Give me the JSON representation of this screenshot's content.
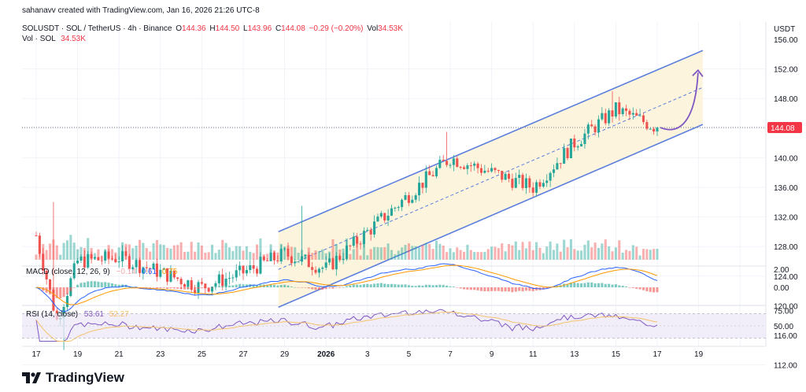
{
  "header": {
    "credit": "sahanavv created with TradingView.com, Jan 16, 2026 21:26 UTC-8",
    "symbol": "SOLUSDT · SOL / TetherUS · 4h · Binance",
    "o_label": "O",
    "o_value": "144.36",
    "h_label": "H",
    "h_value": "144.50",
    "l_label": "L",
    "l_value": "143.96",
    "c_label": "C",
    "c_value": "144.08",
    "change": "−0.29 (−0.20%)",
    "vol_label": "Vol",
    "vol_value": "34.53K",
    "vol_row_label": "Vol · SOL",
    "vol_row_value": "34.53K",
    "currency": "USDT"
  },
  "macd": {
    "label": "MACD (close, 12, 26, 9)",
    "hist": "−0.14",
    "macd": "0.61",
    "signal": "0.75"
  },
  "rsi": {
    "label": "RSI (14, close)",
    "value": "53.61",
    "ma": "52.27"
  },
  "brand": {
    "name": "TradingView"
  },
  "colors": {
    "up": "#26a69a",
    "down": "#ef5350",
    "channel": "#5b7fde",
    "channel_fill": "#fdf3d9",
    "macd": "#2962ff",
    "signal": "#ff9800",
    "rsi": "#7e57c2",
    "price_tag": "#f23645",
    "arrow": "#7e57c2"
  },
  "chart_data": {
    "type": "candlestick",
    "timeframe": "4h",
    "current_price": 144.08,
    "price_ylim": [
      110,
      155
    ],
    "price_ticks": [
      "112.00",
      "116.00",
      "120.00",
      "124.00",
      "128.00",
      "132.00",
      "136.00",
      "140.00",
      "144.08",
      "148.00",
      "152.00",
      "156.00"
    ],
    "x_ticks": [
      "17",
      "19",
      "21",
      "23",
      "25",
      "27",
      "29",
      "2026",
      "3",
      "5",
      "7",
      "9",
      "11",
      "13",
      "15",
      "17",
      "19"
    ],
    "macd_ticks": [
      "2.00",
      "0.00"
    ],
    "rsi_ticks": [
      "75.00",
      "50.00"
    ],
    "rsi_bands": [
      70,
      30
    ],
    "key_closes": [
      {
        "date": "Dec 17",
        "close": 129.5
      },
      {
        "date": "Dec 18",
        "close": 118
      },
      {
        "date": "Dec 19",
        "close": 126
      },
      {
        "date": "Dec 21",
        "close": 126.5
      },
      {
        "date": "Dec 23",
        "close": 124.5
      },
      {
        "date": "Dec 25",
        "close": 122.5
      },
      {
        "date": "Dec 27",
        "close": 124.5
      },
      {
        "date": "Dec 29",
        "close": 127
      },
      {
        "date": "Dec 31",
        "close": 125
      },
      {
        "date": "Jan 2",
        "close": 130
      },
      {
        "date": "Jan 4",
        "close": 135
      },
      {
        "date": "Jan 6",
        "close": 140
      },
      {
        "date": "Jan 8",
        "close": 138
      },
      {
        "date": "Jan 10",
        "close": 136
      },
      {
        "date": "Jan 12",
        "close": 142
      },
      {
        "date": "Jan 14",
        "close": 146.5
      },
      {
        "date": "Jan 16",
        "close": 144.08
      }
    ],
    "channel": {
      "upper": [
        {
          "date": "Dec 28.7",
          "price": 130
        },
        {
          "date": "Jan 18.2",
          "price": 154.5
        }
      ],
      "lower": [
        {
          "date": "Dec 28.7",
          "price": 119.8
        },
        {
          "date": "Jan 18.2",
          "price": 144.5
        }
      ]
    },
    "projection": "upward arrow from 144 toward ~151 by Jan 18"
  }
}
